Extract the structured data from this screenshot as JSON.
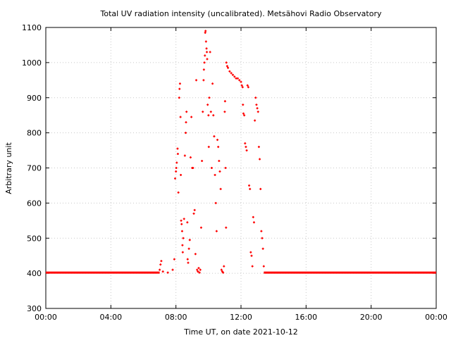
{
  "chart_data": {
    "type": "scatter",
    "title": "Total UV radiation intensity (uncalibrated). Metsähovi Radio Observatory",
    "xlabel": "Time UT, on date 2021-10-12",
    "ylabel": "Arbitrary unit",
    "x_ticks": [
      "00:00",
      "04:00",
      "08:00",
      "12:00",
      "16:00",
      "20:00",
      "00:00"
    ],
    "y_ticks": [
      "300",
      "400",
      "500",
      "600",
      "700",
      "800",
      "900",
      "1000",
      "1100"
    ],
    "xlim": [
      0,
      24
    ],
    "ylim": [
      300,
      1100
    ],
    "grid": true,
    "marker_color": "#ff0000",
    "series": [
      {
        "baseline_value": 402,
        "baseline_ranges": [
          [
            0,
            7.0
          ],
          [
            13.4,
            24
          ]
        ],
        "points": [
          [
            7.0,
            410
          ],
          [
            7.05,
            425
          ],
          [
            7.1,
            435
          ],
          [
            7.2,
            405
          ],
          [
            7.5,
            402
          ],
          [
            7.8,
            410
          ],
          [
            7.9,
            440
          ],
          [
            7.95,
            670
          ],
          [
            8.0,
            690
          ],
          [
            8.02,
            700
          ],
          [
            8.05,
            715
          ],
          [
            8.1,
            755
          ],
          [
            8.12,
            740
          ],
          [
            8.15,
            630
          ],
          [
            8.2,
            900
          ],
          [
            8.22,
            925
          ],
          [
            8.25,
            940
          ],
          [
            8.28,
            845
          ],
          [
            8.3,
            680
          ],
          [
            8.32,
            550
          ],
          [
            8.35,
            540
          ],
          [
            8.38,
            520
          ],
          [
            8.4,
            480
          ],
          [
            8.42,
            460
          ],
          [
            8.45,
            500
          ],
          [
            8.5,
            555
          ],
          [
            8.55,
            735
          ],
          [
            8.6,
            800
          ],
          [
            8.62,
            830
          ],
          [
            8.65,
            860
          ],
          [
            8.7,
            545
          ],
          [
            8.72,
            440
          ],
          [
            8.75,
            430
          ],
          [
            8.8,
            470
          ],
          [
            8.85,
            495
          ],
          [
            8.9,
            730
          ],
          [
            8.95,
            845
          ],
          [
            9.0,
            700
          ],
          [
            9.05,
            700
          ],
          [
            9.1,
            570
          ],
          [
            9.15,
            580
          ],
          [
            9.2,
            455
          ],
          [
            9.25,
            950
          ],
          [
            9.3,
            410
          ],
          [
            9.35,
            405
          ],
          [
            9.4,
            415
          ],
          [
            9.45,
            402
          ],
          [
            9.5,
            410
          ],
          [
            9.55,
            530
          ],
          [
            9.6,
            720
          ],
          [
            9.65,
            860
          ],
          [
            9.7,
            950
          ],
          [
            9.72,
            980
          ],
          [
            9.75,
            1000
          ],
          [
            9.78,
            1020
          ],
          [
            9.8,
            1085
          ],
          [
            9.82,
            1090
          ],
          [
            9.85,
            1060
          ],
          [
            9.88,
            1040
          ],
          [
            9.9,
            1030
          ],
          [
            9.92,
            1010
          ],
          [
            9.95,
            880
          ],
          [
            10.0,
            850
          ],
          [
            10.02,
            760
          ],
          [
            10.05,
            900
          ],
          [
            10.1,
            1030
          ],
          [
            10.15,
            860
          ],
          [
            10.2,
            700
          ],
          [
            10.25,
            940
          ],
          [
            10.3,
            850
          ],
          [
            10.35,
            790
          ],
          [
            10.4,
            680
          ],
          [
            10.45,
            600
          ],
          [
            10.5,
            520
          ],
          [
            10.55,
            780
          ],
          [
            10.6,
            760
          ],
          [
            10.65,
            720
          ],
          [
            10.7,
            690
          ],
          [
            10.75,
            640
          ],
          [
            10.8,
            410
          ],
          [
            10.85,
            405
          ],
          [
            10.9,
            402
          ],
          [
            10.95,
            420
          ],
          [
            11.0,
            860
          ],
          [
            11.02,
            890
          ],
          [
            11.05,
            700
          ],
          [
            11.08,
            530
          ],
          [
            11.1,
            1000
          ],
          [
            11.15,
            990
          ],
          [
            11.2,
            985
          ],
          [
            11.3,
            975
          ],
          [
            11.4,
            970
          ],
          [
            11.5,
            965
          ],
          [
            11.6,
            960
          ],
          [
            11.7,
            955
          ],
          [
            11.8,
            955
          ],
          [
            11.9,
            950
          ],
          [
            12.0,
            945
          ],
          [
            12.05,
            935
          ],
          [
            12.1,
            930
          ],
          [
            12.12,
            880
          ],
          [
            12.15,
            855
          ],
          [
            12.2,
            850
          ],
          [
            12.25,
            770
          ],
          [
            12.3,
            760
          ],
          [
            12.35,
            750
          ],
          [
            12.4,
            935
          ],
          [
            12.45,
            930
          ],
          [
            12.5,
            650
          ],
          [
            12.55,
            640
          ],
          [
            12.6,
            460
          ],
          [
            12.65,
            450
          ],
          [
            12.7,
            420
          ],
          [
            12.75,
            560
          ],
          [
            12.8,
            545
          ],
          [
            12.85,
            835
          ],
          [
            12.9,
            900
          ],
          [
            12.95,
            880
          ],
          [
            13.0,
            870
          ],
          [
            13.05,
            860
          ],
          [
            13.1,
            760
          ],
          [
            13.15,
            725
          ],
          [
            13.2,
            640
          ],
          [
            13.25,
            520
          ],
          [
            13.3,
            500
          ],
          [
            13.35,
            470
          ],
          [
            13.4,
            420
          ]
        ]
      }
    ]
  }
}
